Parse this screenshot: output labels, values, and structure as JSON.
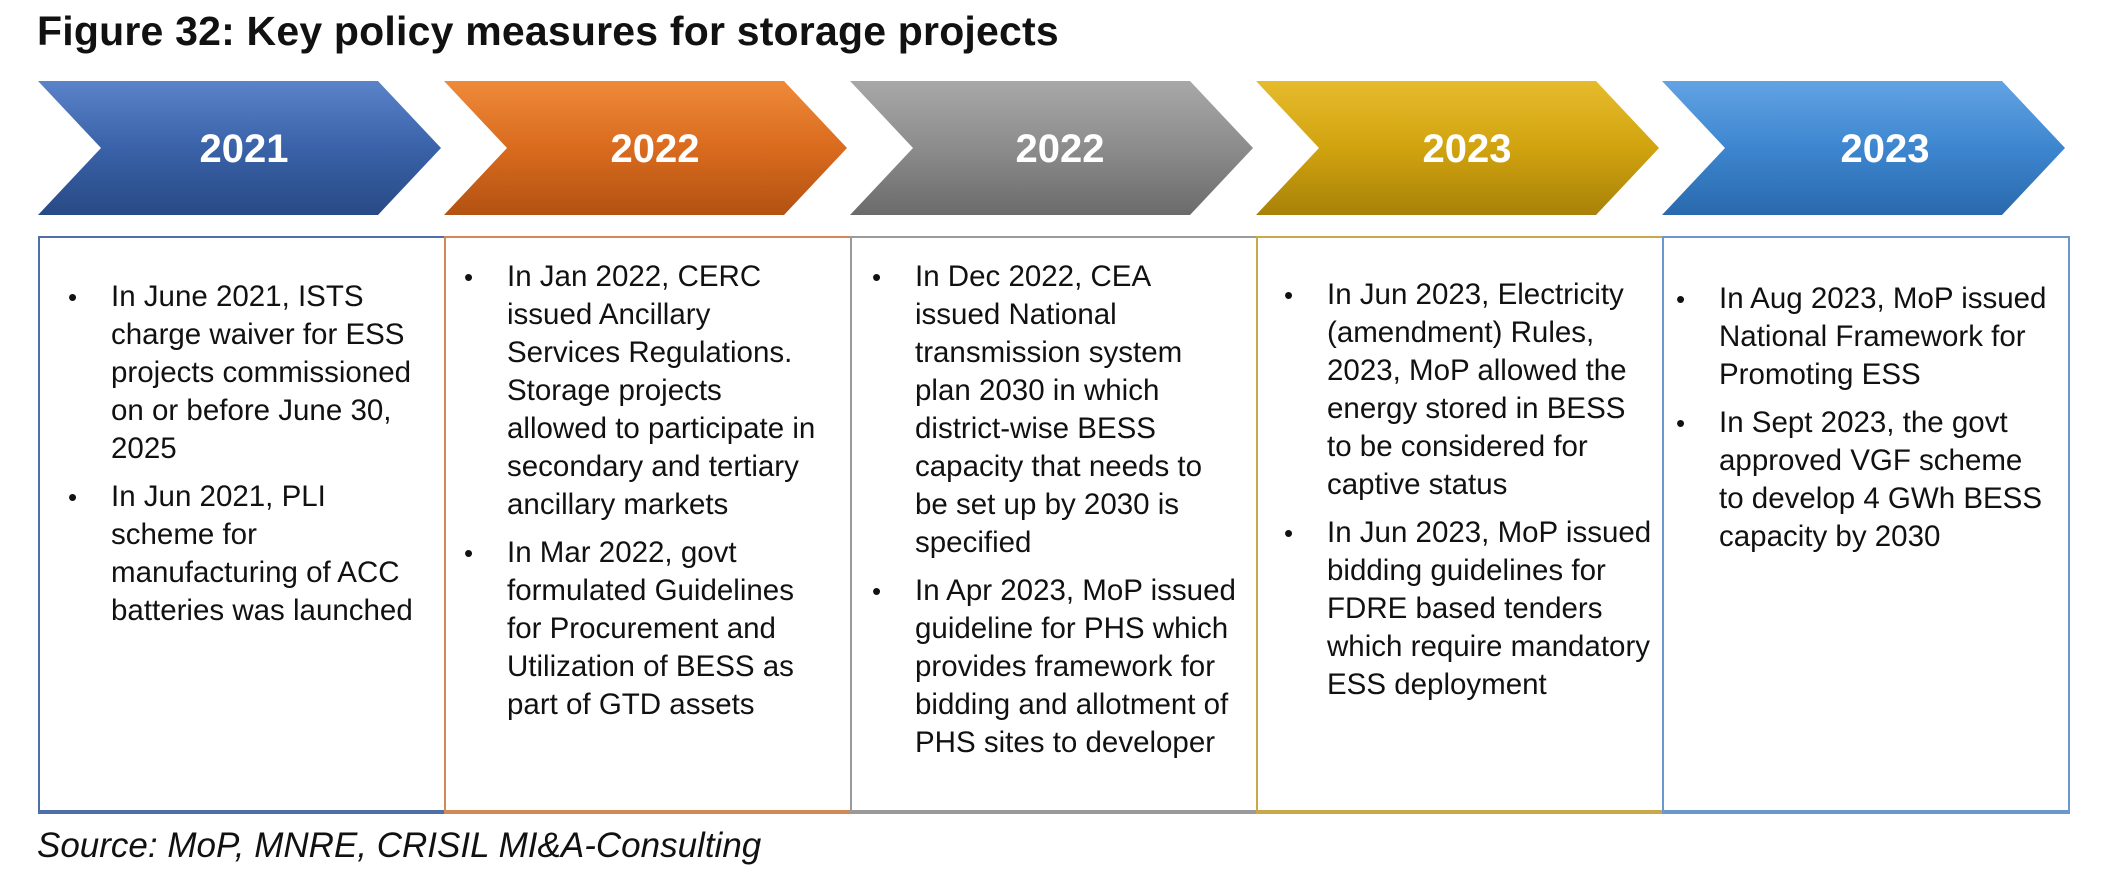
{
  "figure": {
    "title": "Figure 32: Key policy measures for storage projects",
    "source": "Source: MoP, MNRE, CRISIL MI&A-Consulting"
  },
  "timeline": [
    {
      "year": "2021",
      "color": "#3a62a8",
      "bullets": [
        "In June 2021, ISTS charge waiver for ESS projects commissioned on or before June 30, 2025",
        "In Jun 2021, PLI scheme for manufacturing of ACC batteries was launched"
      ]
    },
    {
      "year": "2022",
      "color": "#d96b1e",
      "bullets": [
        "In Jan 2022, CERC issued Ancillary Services Regulations. Storage projects allowed to participate in secondary and tertiary ancillary markets",
        "In Mar 2022, govt formulated Guidelines for Procurement and Utilization of BESS as part of GTD assets"
      ]
    },
    {
      "year": "2022",
      "color": "#8c8c8c",
      "bullets": [
        "In Dec 2022, CEA issued National transmission system plan 2030 in which district-wise BESS capacity that needs to be set up by 2030 is specified",
        "In Apr 2023, MoP issued guideline for PHS which provides framework for bidding and allotment of PHS sites to developer"
      ]
    },
    {
      "year": "2023",
      "color": "#d1a30f",
      "bullets": [
        "In Jun 2023, Electricity (amendment) Rules, 2023, MoP allowed the energy stored in BESS to be considered for captive status",
        "In Jun 2023, MoP issued bidding guidelines for FDRE based tenders which require mandatory ESS deployment"
      ]
    },
    {
      "year": "2023",
      "color": "#3d86cf",
      "bullets": [
        "In Aug 2023, MoP issued National Framework for Promoting ESS",
        "In Sept 2023, the govt approved VGF scheme to develop 4 GWh BESS capacity by 2030"
      ]
    }
  ]
}
